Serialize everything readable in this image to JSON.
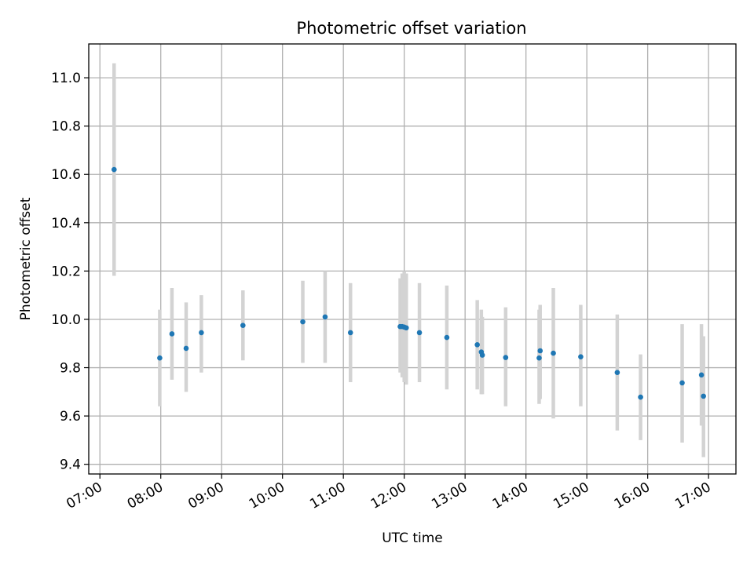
{
  "chart_data": {
    "type": "scatter",
    "title": "Photometric offset variation",
    "xlabel": "UTC time",
    "ylabel": "Photometric offset",
    "grid": true,
    "xlim": [
      "06:49",
      "17:27"
    ],
    "ylim": [
      9.36,
      11.14
    ],
    "x_ticks": [
      "07:00",
      "08:00",
      "09:00",
      "10:00",
      "11:00",
      "12:00",
      "13:00",
      "14:00",
      "15:00",
      "16:00",
      "17:00"
    ],
    "y_ticks": [
      "9.4",
      "9.6",
      "9.8",
      "10.0",
      "10.2",
      "10.4",
      "10.6",
      "10.8",
      "11.0"
    ],
    "colors": {
      "point": "#1f77b4",
      "errorbar": "#d3d3d3"
    },
    "points": [
      {
        "x": "07:14",
        "y": 10.62,
        "yerr_low": 10.18,
        "yerr_high": 11.06
      },
      {
        "x": "07:59",
        "y": 9.84,
        "yerr_low": 9.64,
        "yerr_high": 10.04
      },
      {
        "x": "08:11",
        "y": 9.94,
        "yerr_low": 9.75,
        "yerr_high": 10.13
      },
      {
        "x": "08:25",
        "y": 9.88,
        "yerr_low": 9.7,
        "yerr_high": 10.07
      },
      {
        "x": "08:40",
        "y": 9.945,
        "yerr_low": 9.78,
        "yerr_high": 10.1
      },
      {
        "x": "09:21",
        "y": 9.975,
        "yerr_low": 9.83,
        "yerr_high": 10.12
      },
      {
        "x": "10:20",
        "y": 9.99,
        "yerr_low": 9.82,
        "yerr_high": 10.16
      },
      {
        "x": "10:42",
        "y": 10.01,
        "yerr_low": 9.82,
        "yerr_high": 10.2
      },
      {
        "x": "11:07",
        "y": 9.945,
        "yerr_low": 9.74,
        "yerr_high": 10.15
      },
      {
        "x": "11:56",
        "y": 9.97,
        "yerr_low": 9.78,
        "yerr_high": 10.17
      },
      {
        "x": "11:58",
        "y": 9.97,
        "yerr_low": 9.76,
        "yerr_high": 10.19
      },
      {
        "x": "12:00",
        "y": 9.968,
        "yerr_low": 9.74,
        "yerr_high": 10.2
      },
      {
        "x": "12:02",
        "y": 9.965,
        "yerr_low": 9.73,
        "yerr_high": 10.19
      },
      {
        "x": "12:15",
        "y": 9.945,
        "yerr_low": 9.74,
        "yerr_high": 10.15
      },
      {
        "x": "12:42",
        "y": 9.925,
        "yerr_low": 9.71,
        "yerr_high": 10.14
      },
      {
        "x": "13:12",
        "y": 9.895,
        "yerr_low": 9.71,
        "yerr_high": 10.08
      },
      {
        "x": "13:16",
        "y": 9.865,
        "yerr_low": 9.69,
        "yerr_high": 10.04
      },
      {
        "x": "13:17",
        "y": 9.852,
        "yerr_low": 9.69,
        "yerr_high": 10.01
      },
      {
        "x": "13:40",
        "y": 9.842,
        "yerr_low": 9.64,
        "yerr_high": 10.05
      },
      {
        "x": "14:13",
        "y": 9.84,
        "yerr_low": 9.65,
        "yerr_high": 10.04
      },
      {
        "x": "14:14",
        "y": 9.87,
        "yerr_low": 9.67,
        "yerr_high": 10.06
      },
      {
        "x": "14:27",
        "y": 9.86,
        "yerr_low": 9.59,
        "yerr_high": 10.13
      },
      {
        "x": "14:54",
        "y": 9.845,
        "yerr_low": 9.64,
        "yerr_high": 10.06
      },
      {
        "x": "15:30",
        "y": 9.78,
        "yerr_low": 9.54,
        "yerr_high": 10.02
      },
      {
        "x": "15:53",
        "y": 9.678,
        "yerr_low": 9.5,
        "yerr_high": 9.855
      },
      {
        "x": "16:34",
        "y": 9.737,
        "yerr_low": 9.49,
        "yerr_high": 9.98
      },
      {
        "x": "16:53",
        "y": 9.77,
        "yerr_low": 9.56,
        "yerr_high": 9.98
      },
      {
        "x": "16:55",
        "y": 9.682,
        "yerr_low": 9.43,
        "yerr_high": 9.93
      }
    ]
  }
}
